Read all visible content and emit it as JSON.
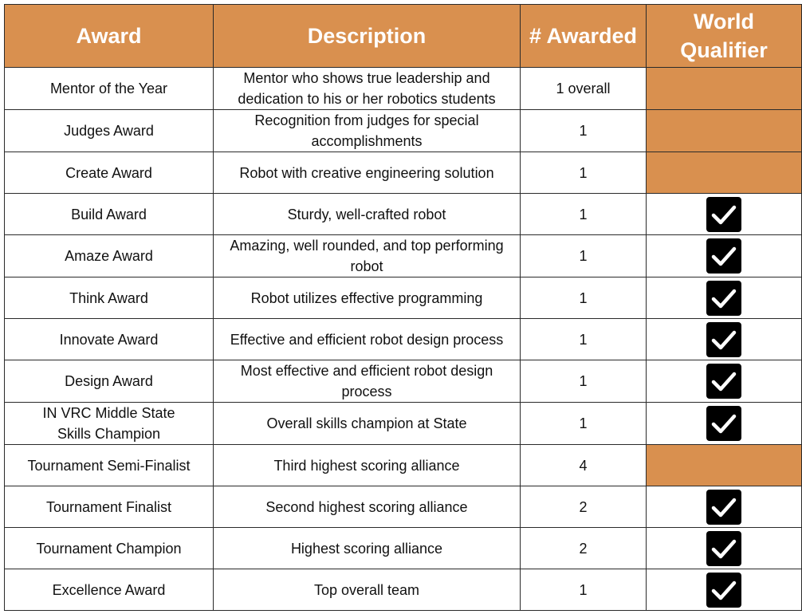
{
  "headers": {
    "award": "Award",
    "description": "Description",
    "awarded": "# Awarded",
    "world_qualifier": "World Qualifier"
  },
  "colors": {
    "accent": "#d9904f",
    "check_bg": "#000000"
  },
  "rows": [
    {
      "award": "Mentor of the Year",
      "description": "Mentor who shows true leadership and dedication to his or her robotics students",
      "awarded": "1 overall",
      "world_qualifier": "none"
    },
    {
      "award": "Judges Award",
      "description": "Recognition from judges for special accomplishments",
      "awarded": "1",
      "world_qualifier": "none"
    },
    {
      "award": "Create Award",
      "description": "Robot with creative engineering solution",
      "awarded": "1",
      "world_qualifier": "none"
    },
    {
      "award": "Build Award",
      "description": "Sturdy, well-crafted robot",
      "awarded": "1",
      "world_qualifier": "check"
    },
    {
      "award": "Amaze Award",
      "description": "Amazing, well rounded, and top performing robot",
      "awarded": "1",
      "world_qualifier": "check"
    },
    {
      "award": "Think Award",
      "description": "Robot utilizes effective programming",
      "awarded": "1",
      "world_qualifier": "check"
    },
    {
      "award": "Innovate Award",
      "description": "Effective and efficient robot design process",
      "awarded": "1",
      "world_qualifier": "check"
    },
    {
      "award": "Design Award",
      "description": "Most effective and efficient robot design process",
      "awarded": "1",
      "world_qualifier": "check"
    },
    {
      "award": "IN VRC Middle State Skills Champion",
      "description": "Overall skills champion at State",
      "awarded": "1",
      "world_qualifier": "check"
    },
    {
      "award": "Tournament Semi-Finalist",
      "description": "Third highest scoring alliance",
      "awarded": "4",
      "world_qualifier": "none"
    },
    {
      "award": "Tournament Finalist",
      "description": "Second highest scoring alliance",
      "awarded": "2",
      "world_qualifier": "check"
    },
    {
      "award": "Tournament Champion",
      "description": "Highest scoring alliance",
      "awarded": "2",
      "world_qualifier": "check"
    },
    {
      "award": "Excellence Award",
      "description": "Top overall team",
      "awarded": "1",
      "world_qualifier": "check"
    }
  ]
}
